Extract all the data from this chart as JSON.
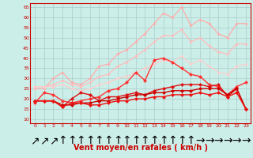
{
  "background_color": "#cceee8",
  "grid_color": "#aacccc",
  "xlabel": "Vent moyen/en rafales ( km/h )",
  "xlabel_color": "#cc0000",
  "xlabel_fontsize": 7,
  "ylabel_ticks": [
    10,
    15,
    20,
    25,
    30,
    35,
    40,
    45,
    50,
    55,
    60,
    65
  ],
  "x_labels": [
    "0",
    "1",
    "2",
    "3",
    "4",
    "5",
    "6",
    "7",
    "8",
    "9",
    "10",
    "11",
    "12",
    "13",
    "14",
    "15",
    "16",
    "17",
    "18",
    "19",
    "20",
    "21",
    "22",
    "23"
  ],
  "arrow_labels": [
    "↗",
    "↗",
    "↗",
    "↑",
    "↑",
    "↑",
    "↑",
    "↑",
    "↑",
    "↑",
    "↑",
    "↑",
    "↑",
    "↑",
    "↑",
    "↑",
    "↑",
    "↑",
    "→",
    "→",
    "→",
    "→",
    "→",
    "→"
  ],
  "lines": [
    {
      "color": "#ffaaaa",
      "alpha": 1.0,
      "linewidth": 0.9,
      "marker": "D",
      "markersize": 2.0,
      "y": [
        25,
        25,
        30,
        33,
        28,
        27,
        30,
        36,
        37,
        42,
        44,
        48,
        52,
        57,
        62,
        60,
        65,
        56,
        59,
        57,
        52,
        50,
        57,
        57
      ]
    },
    {
      "color": "#ffbbbb",
      "alpha": 1.0,
      "linewidth": 0.9,
      "marker": "D",
      "markersize": 2.0,
      "y": [
        26,
        26,
        27,
        29,
        27,
        26,
        28,
        31,
        32,
        36,
        38,
        41,
        44,
        48,
        51,
        51,
        54,
        48,
        50,
        46,
        43,
        42,
        47,
        47
      ]
    },
    {
      "color": "#ffcccc",
      "alpha": 1.0,
      "linewidth": 0.9,
      "marker": "D",
      "markersize": 2.0,
      "y": [
        26,
        26,
        26,
        27,
        25,
        24,
        25,
        27,
        28,
        30,
        31,
        33,
        35,
        37,
        39,
        38,
        41,
        37,
        39,
        36,
        33,
        32,
        36,
        37
      ]
    },
    {
      "color": "#ff3333",
      "alpha": 1.0,
      "linewidth": 1.0,
      "marker": "D",
      "markersize": 2.5,
      "y": [
        18,
        23,
        22,
        19,
        18,
        19,
        20,
        21,
        24,
        25,
        28,
        33,
        29,
        39,
        40,
        38,
        35,
        32,
        31,
        27,
        26,
        22,
        26,
        28
      ]
    },
    {
      "color": "#dd1111",
      "alpha": 1.0,
      "linewidth": 1.0,
      "marker": "D",
      "markersize": 2.5,
      "y": [
        19,
        19,
        19,
        16,
        20,
        23,
        22,
        19,
        21,
        21,
        22,
        23,
        22,
        24,
        25,
        26,
        27,
        27,
        27,
        26,
        27,
        21,
        25,
        15
      ]
    },
    {
      "color": "#cc0000",
      "alpha": 1.0,
      "linewidth": 1.0,
      "marker": "D",
      "markersize": 2.5,
      "y": [
        19,
        19,
        19,
        17,
        17,
        18,
        18,
        19,
        19,
        20,
        21,
        22,
        22,
        23,
        23,
        24,
        24,
        24,
        25,
        25,
        25,
        22,
        25,
        15
      ]
    },
    {
      "color": "#ee1111",
      "alpha": 1.0,
      "linewidth": 1.0,
      "marker": "D",
      "markersize": 2.5,
      "y": [
        19,
        19,
        19,
        16,
        18,
        18,
        17,
        17,
        18,
        19,
        19,
        20,
        20,
        21,
        21,
        22,
        22,
        22,
        23,
        22,
        23,
        21,
        23,
        15
      ]
    }
  ]
}
